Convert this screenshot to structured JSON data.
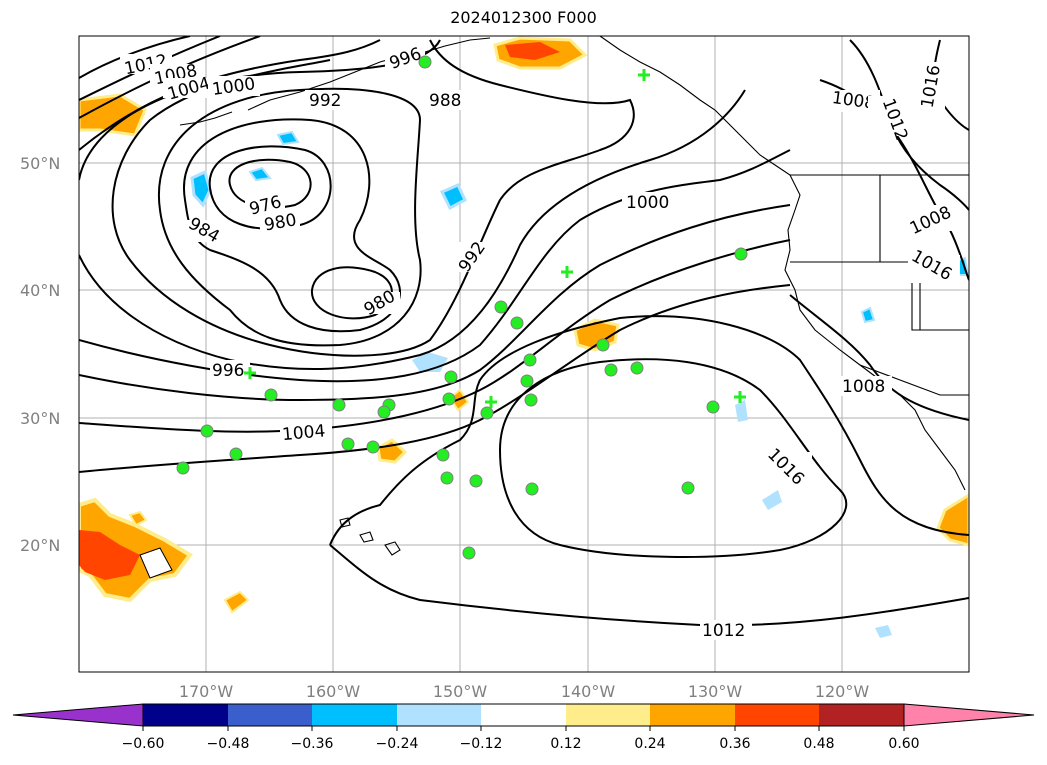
{
  "title": "2024012300 F000",
  "map": {
    "lat_labels": [
      "50°N",
      "40°N",
      "30°N",
      "20°N"
    ],
    "lon_labels": [
      "170°W",
      "160°W",
      "150°W",
      "140°W",
      "130°W",
      "120°W"
    ],
    "contour_labels": [
      "1012",
      "1008",
      "1004",
      "1000",
      "992",
      "996",
      "988",
      "976",
      "980",
      "984",
      "980",
      "992",
      "1000",
      "1008",
      "1012",
      "1016",
      "1008",
      "1016",
      "1008",
      "996",
      "1004",
      "1016",
      "1012"
    ]
  },
  "colorbar": {
    "colors": [
      "#9932cc",
      "#00008b",
      "#3a5fcd",
      "#00bfff",
      "#b0e2ff",
      "#ffffff",
      "#ffec8b",
      "#ffa500",
      "#ff4500",
      "#b22222",
      "#ff82ab"
    ],
    "ticks": [
      "−0.60",
      "−0.48",
      "−0.36",
      "−0.24",
      "−0.12",
      "0.12",
      "0.24",
      "0.36",
      "0.48",
      "0.60"
    ]
  },
  "colors": {
    "contour": "#000000",
    "station_marker": "#22ee22",
    "station_outline": "#808080",
    "positive_fill": "#ffa500",
    "negative_fill": "#00bfff"
  }
}
